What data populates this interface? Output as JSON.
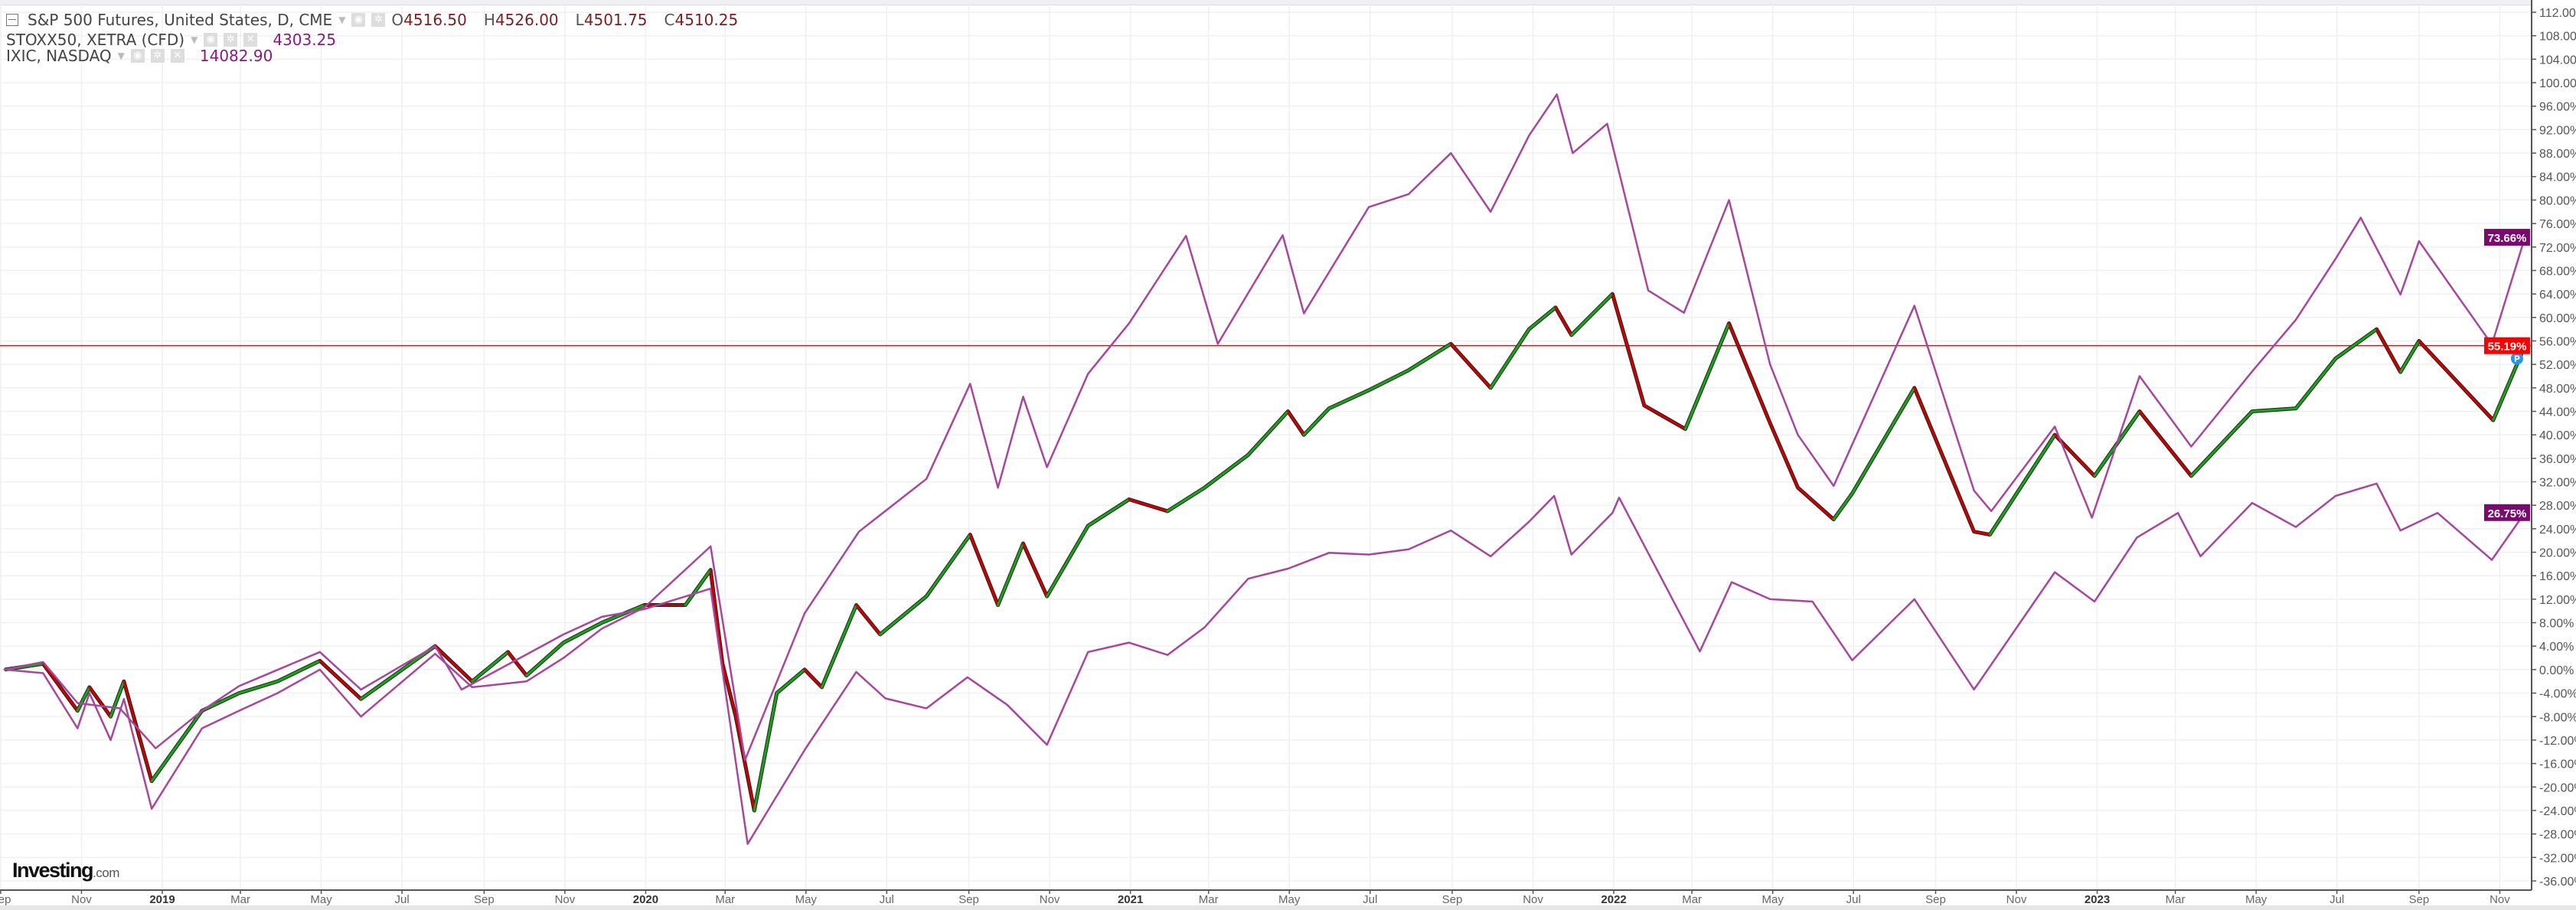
{
  "legend": {
    "main": {
      "title": "S&P 500 Futures, United States, D, CME",
      "o_label": "O",
      "o": "4516.50",
      "h_label": "H",
      "h": "4526.00",
      "l_label": "L",
      "l": "4501.75",
      "c_label": "C",
      "c": "4510.25"
    },
    "compare": [
      {
        "title": "STOXX50, XETRA (CFD)",
        "value": "4303.25"
      },
      {
        "title": "IXIC, NASDAQ",
        "value": "14082.90"
      }
    ]
  },
  "logo": {
    "brand": "Investing",
    "suffix": ".com"
  },
  "colors": {
    "up": "#1aa31a",
    "down": "#cc0000",
    "compare": "#a6479c",
    "price_line": "#ff0000",
    "label_purple": "#7b0a6e"
  },
  "chart_data": {
    "type": "line",
    "ylabel_unit": "%",
    "ylim": [
      -36,
      112
    ],
    "y_ticks": [
      "112.00%",
      "108.00%",
      "104.00%",
      "100.00%",
      "96.00%",
      "92.00%",
      "88.00%",
      "84.00%",
      "80.00%",
      "76.00%",
      "72.00%",
      "68.00%",
      "64.00%",
      "60.00%",
      "56.00%",
      "52.00%",
      "48.00%",
      "44.00%",
      "40.00%",
      "36.00%",
      "32.00%",
      "28.00%",
      "24.00%",
      "20.00%",
      "16.00%",
      "12.00%",
      "8.00%",
      "4.00%",
      "0.00%",
      "-4.00%",
      "-8.00%",
      "-12.00%",
      "-16.00%",
      "-20.00%",
      "-24.00%",
      "-28.00%",
      "-32.00%",
      "-36.00%"
    ],
    "x_ticks": [
      {
        "date": "2018-09-01",
        "label": "Sep"
      },
      {
        "date": "2018-11-01",
        "label": "Nov"
      },
      {
        "date": "2019-01-01",
        "label": "2019"
      },
      {
        "date": "2019-03-01",
        "label": "Mar"
      },
      {
        "date": "2019-05-01",
        "label": "May"
      },
      {
        "date": "2019-07-01",
        "label": "Jul"
      },
      {
        "date": "2019-09-01",
        "label": "Sep"
      },
      {
        "date": "2019-11-01",
        "label": "Nov"
      },
      {
        "date": "2020-01-01",
        "label": "2020"
      },
      {
        "date": "2020-03-01",
        "label": "Mar"
      },
      {
        "date": "2020-05-01",
        "label": "May"
      },
      {
        "date": "2020-07-01",
        "label": "Jul"
      },
      {
        "date": "2020-09-01",
        "label": "Sep"
      },
      {
        "date": "2020-11-01",
        "label": "Nov"
      },
      {
        "date": "2021-01-01",
        "label": "2021"
      },
      {
        "date": "2021-03-01",
        "label": "Mar"
      },
      {
        "date": "2021-05-01",
        "label": "May"
      },
      {
        "date": "2021-07-01",
        "label": "Jul"
      },
      {
        "date": "2021-09-01",
        "label": "Sep"
      },
      {
        "date": "2021-11-01",
        "label": "Nov"
      },
      {
        "date": "2022-01-01",
        "label": "2022"
      },
      {
        "date": "2022-03-01",
        "label": "Mar"
      },
      {
        "date": "2022-05-01",
        "label": "May"
      },
      {
        "date": "2022-07-01",
        "label": "Jul"
      },
      {
        "date": "2022-09-01",
        "label": "Sep"
      },
      {
        "date": "2022-11-01",
        "label": "Nov"
      },
      {
        "date": "2023-01-01",
        "label": "2023"
      },
      {
        "date": "2023-03-01",
        "label": "Mar"
      },
      {
        "date": "2023-05-01",
        "label": "May"
      },
      {
        "date": "2023-07-01",
        "label": "Jul"
      },
      {
        "date": "2023-09-01",
        "label": "Sep"
      },
      {
        "date": "2023-11-01",
        "label": "Nov"
      }
    ],
    "grid": true,
    "price_line": {
      "value": 55.19,
      "label": "55.19%"
    },
    "last_labels": [
      {
        "series": "IXIC, NASDAQ",
        "label": "73.66%",
        "value": 73.66
      },
      {
        "series": "STOXX50, XETRA (CFD)",
        "label": "26.75%",
        "value": 26.75
      }
    ],
    "marker": {
      "label": "P",
      "date": "2023-11-14",
      "value": 53
    },
    "series": [
      {
        "name": "S&P 500 Futures, United States, D, CME",
        "style": "candles",
        "points": [
          [
            "2018-09-04",
            0
          ],
          [
            "2018-10-03",
            1
          ],
          [
            "2018-10-29",
            -7
          ],
          [
            "2018-11-07",
            -3
          ],
          [
            "2018-11-23",
            -8
          ],
          [
            "2018-12-03",
            -2
          ],
          [
            "2018-12-24",
            -19
          ],
          [
            "2019-01-31",
            -7
          ],
          [
            "2019-02-28",
            -4
          ],
          [
            "2019-03-29",
            -2
          ],
          [
            "2019-04-30",
            1.5
          ],
          [
            "2019-05-31",
            -5
          ],
          [
            "2019-07-26",
            4
          ],
          [
            "2019-08-23",
            -2
          ],
          [
            "2019-09-19",
            3
          ],
          [
            "2019-10-03",
            -1
          ],
          [
            "2019-10-31",
            4.6
          ],
          [
            "2019-11-29",
            8
          ],
          [
            "2019-12-31",
            11
          ],
          [
            "2020-01-31",
            11
          ],
          [
            "2020-02-19",
            17
          ],
          [
            "2020-02-28",
            1
          ],
          [
            "2020-03-09",
            -8
          ],
          [
            "2020-03-23",
            -24
          ],
          [
            "2020-04-09",
            -4
          ],
          [
            "2020-04-30",
            0
          ],
          [
            "2020-05-13",
            -3
          ],
          [
            "2020-06-08",
            11
          ],
          [
            "2020-06-26",
            6
          ],
          [
            "2020-07-31",
            12.5
          ],
          [
            "2020-09-02",
            23
          ],
          [
            "2020-09-23",
            11
          ],
          [
            "2020-10-12",
            21.5
          ],
          [
            "2020-10-30",
            12.5
          ],
          [
            "2020-11-30",
            24.5
          ],
          [
            "2020-12-31",
            29
          ],
          [
            "2021-01-29",
            27
          ],
          [
            "2021-02-26",
            31
          ],
          [
            "2021-03-31",
            36.6
          ],
          [
            "2021-04-30",
            44
          ],
          [
            "2021-05-12",
            40
          ],
          [
            "2021-05-31",
            44.5
          ],
          [
            "2021-06-30",
            47.6
          ],
          [
            "2021-07-30",
            51
          ],
          [
            "2021-08-31",
            55.5
          ],
          [
            "2021-09-30",
            48
          ],
          [
            "2021-10-29",
            58
          ],
          [
            "2021-11-18",
            61.7
          ],
          [
            "2021-11-30",
            57
          ],
          [
            "2021-12-31",
            64
          ],
          [
            "2022-01-24",
            45
          ],
          [
            "2022-02-24",
            41
          ],
          [
            "2022-03-29",
            59
          ],
          [
            "2022-04-29",
            42
          ],
          [
            "2022-05-20",
            31
          ],
          [
            "2022-06-16",
            25.6
          ],
          [
            "2022-06-30",
            30
          ],
          [
            "2022-08-16",
            48
          ],
          [
            "2022-09-30",
            23.5
          ],
          [
            "2022-10-12",
            23
          ],
          [
            "2022-11-30",
            40
          ],
          [
            "2022-12-30",
            33
          ],
          [
            "2023-02-02",
            44
          ],
          [
            "2023-03-13",
            33
          ],
          [
            "2023-04-28",
            44
          ],
          [
            "2023-05-31",
            44.5
          ],
          [
            "2023-06-30",
            53
          ],
          [
            "2023-07-31",
            58
          ],
          [
            "2023-08-18",
            50.7
          ],
          [
            "2023-09-01",
            56
          ],
          [
            "2023-10-27",
            42.5
          ],
          [
            "2023-11-20",
            55.19
          ]
        ]
      },
      {
        "name": "IXIC, NASDAQ",
        "style": "line",
        "points": [
          [
            "2018-09-04",
            0
          ],
          [
            "2018-10-03",
            -0.6
          ],
          [
            "2018-10-29",
            -10
          ],
          [
            "2018-11-07",
            -4
          ],
          [
            "2018-11-23",
            -12
          ],
          [
            "2018-12-03",
            -5
          ],
          [
            "2018-12-24",
            -23.7
          ],
          [
            "2019-01-31",
            -10
          ],
          [
            "2019-02-28",
            -7
          ],
          [
            "2019-03-29",
            -4
          ],
          [
            "2019-04-30",
            0
          ],
          [
            "2019-05-31",
            -8
          ],
          [
            "2019-07-26",
            2.7
          ],
          [
            "2019-08-23",
            -3
          ],
          [
            "2019-10-03",
            -2
          ],
          [
            "2019-10-31",
            2
          ],
          [
            "2019-11-29",
            7
          ],
          [
            "2019-12-31",
            10.6
          ],
          [
            "2020-02-19",
            21
          ],
          [
            "2020-03-16",
            -15.4
          ],
          [
            "2020-04-30",
            9.6
          ],
          [
            "2020-06-10",
            23.5
          ],
          [
            "2020-07-31",
            32.5
          ],
          [
            "2020-09-02",
            48.7
          ],
          [
            "2020-09-23",
            31
          ],
          [
            "2020-10-12",
            46.5
          ],
          [
            "2020-10-30",
            34.5
          ],
          [
            "2020-11-30",
            50.4
          ],
          [
            "2020-12-31",
            59
          ],
          [
            "2021-02-12",
            73.9
          ],
          [
            "2021-03-08",
            55.5
          ],
          [
            "2021-04-26",
            74
          ],
          [
            "2021-05-12",
            60.7
          ],
          [
            "2021-06-30",
            78.8
          ],
          [
            "2021-07-30",
            81
          ],
          [
            "2021-08-31",
            88
          ],
          [
            "2021-09-30",
            78
          ],
          [
            "2021-10-29",
            91
          ],
          [
            "2021-11-19",
            98
          ],
          [
            "2021-12-01",
            88
          ],
          [
            "2021-12-27",
            93
          ],
          [
            "2022-01-27",
            64.6
          ],
          [
            "2022-02-23",
            60.8
          ],
          [
            "2022-03-29",
            80
          ],
          [
            "2022-04-29",
            52
          ],
          [
            "2022-05-20",
            40
          ],
          [
            "2022-06-16",
            31.3
          ],
          [
            "2022-08-16",
            62
          ],
          [
            "2022-09-30",
            30.5
          ],
          [
            "2022-10-13",
            27
          ],
          [
            "2022-11-30",
            41.4
          ],
          [
            "2022-12-28",
            25.9
          ],
          [
            "2023-02-02",
            50
          ],
          [
            "2023-03-13",
            38
          ],
          [
            "2023-04-28",
            50.8
          ],
          [
            "2023-05-31",
            59.6
          ],
          [
            "2023-06-30",
            70
          ],
          [
            "2023-07-19",
            77
          ],
          [
            "2023-08-18",
            63.9
          ],
          [
            "2023-09-01",
            73
          ],
          [
            "2023-10-26",
            55.4
          ],
          [
            "2023-11-20",
            73.66
          ]
        ]
      },
      {
        "name": "STOXX50, XETRA (CFD)",
        "style": "line",
        "points": [
          [
            "2018-09-04",
            0
          ],
          [
            "2018-10-03",
            1.3
          ],
          [
            "2018-10-29",
            -5.7
          ],
          [
            "2018-11-30",
            -6.6
          ],
          [
            "2018-12-27",
            -13.4
          ],
          [
            "2019-01-31",
            -7
          ],
          [
            "2019-02-28",
            -2.8
          ],
          [
            "2019-04-30",
            3
          ],
          [
            "2019-05-31",
            -3.4
          ],
          [
            "2019-07-26",
            4
          ],
          [
            "2019-08-15",
            -3.4
          ],
          [
            "2019-10-31",
            6
          ],
          [
            "2019-11-29",
            9
          ],
          [
            "2019-12-31",
            10.3
          ],
          [
            "2020-02-19",
            13.8
          ],
          [
            "2020-03-18",
            -29.7
          ],
          [
            "2020-04-30",
            -13.7
          ],
          [
            "2020-06-08",
            -0.4
          ],
          [
            "2020-06-30",
            -4.9
          ],
          [
            "2020-07-31",
            -6.6
          ],
          [
            "2020-08-31",
            -1.3
          ],
          [
            "2020-09-30",
            -6
          ],
          [
            "2020-10-30",
            -12.8
          ],
          [
            "2020-11-30",
            3
          ],
          [
            "2020-12-31",
            4.6
          ],
          [
            "2021-01-29",
            2.5
          ],
          [
            "2021-02-26",
            7.2
          ],
          [
            "2021-03-31",
            15.5
          ],
          [
            "2021-04-30",
            17.2
          ],
          [
            "2021-05-31",
            19.9
          ],
          [
            "2021-06-30",
            19.6
          ],
          [
            "2021-07-30",
            20.5
          ],
          [
            "2021-08-31",
            23.7
          ],
          [
            "2021-09-30",
            19.3
          ],
          [
            "2021-10-29",
            25.2
          ],
          [
            "2021-11-17",
            29.6
          ],
          [
            "2021-11-30",
            19.6
          ],
          [
            "2021-12-31",
            26.7
          ],
          [
            "2022-01-05",
            29.3
          ],
          [
            "2022-03-07",
            3.1
          ],
          [
            "2022-03-31",
            14.9
          ],
          [
            "2022-04-29",
            12
          ],
          [
            "2022-05-31",
            11.6
          ],
          [
            "2022-06-30",
            1.6
          ],
          [
            "2022-08-16",
            12
          ],
          [
            "2022-09-30",
            -3.4
          ],
          [
            "2022-11-30",
            16.6
          ],
          [
            "2022-12-30",
            11.6
          ],
          [
            "2023-01-31",
            22.5
          ],
          [
            "2023-03-03",
            26.7
          ],
          [
            "2023-03-20",
            19.3
          ],
          [
            "2023-04-28",
            28.4
          ],
          [
            "2023-05-31",
            24.3
          ],
          [
            "2023-06-30",
            29.6
          ],
          [
            "2023-07-31",
            31.7
          ],
          [
            "2023-08-18",
            23.7
          ],
          [
            "2023-09-15",
            26.7
          ],
          [
            "2023-10-26",
            18.7
          ],
          [
            "2023-11-20",
            26.75
          ]
        ]
      }
    ]
  }
}
